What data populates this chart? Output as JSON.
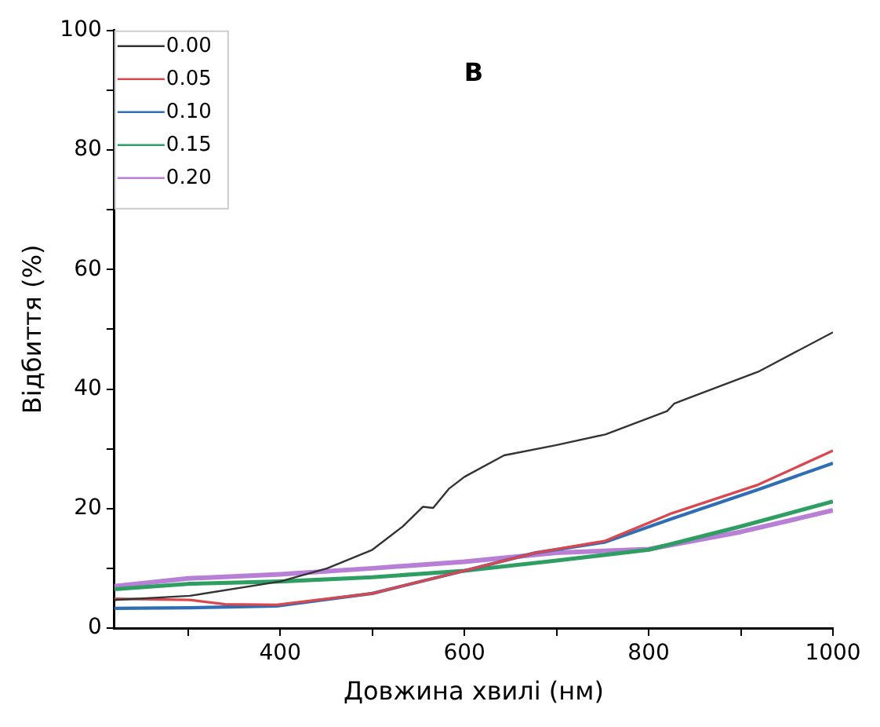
{
  "chart_data": {
    "type": "line",
    "title": "B",
    "xlabel": "Довжина хвилі (нм)",
    "ylabel": "Відбиття (%)",
    "xlim": [
      220,
      1000
    ],
    "ylim": [
      0,
      100
    ],
    "xticks": [
      {
        "value": 300,
        "label": null
      },
      400,
      {
        "value": 500,
        "label": null
      },
      600,
      {
        "value": 700,
        "label": null
      },
      800,
      {
        "value": 900,
        "label": null
      },
      1000
    ],
    "yticks": [
      0,
      {
        "value": 10,
        "label": null
      },
      20,
      {
        "value": 30,
        "label": null
      },
      40,
      {
        "value": 50,
        "label": null
      },
      60,
      {
        "value": 70,
        "label": null
      },
      80,
      {
        "value": 90,
        "label": null
      },
      100
    ],
    "grid": false,
    "legend": "top left",
    "marker": "none",
    "line_style": "solid",
    "series": [
      {
        "name": "0.00",
        "color": "#333333",
        "x": [
          220,
          302,
          400,
          451,
          500,
          533,
          555,
          566,
          583,
          600,
          643,
          699,
          753,
          820,
          828,
          919,
          1000
        ],
        "values": [
          4.7,
          5.4,
          7.8,
          10,
          13.1,
          17,
          20.3,
          20.1,
          23.3,
          25.3,
          28.9,
          30.6,
          32.4,
          36.3,
          37.6,
          42.9,
          49.5
        ]
      },
      {
        "name": "0.05",
        "color": "#d9474f",
        "x": [
          220,
          302,
          340,
          396,
          500,
          600,
          677,
          753,
          825,
          919,
          1000
        ],
        "values": [
          4.9,
          4.7,
          4,
          3.9,
          5.8,
          9.6,
          12.6,
          14.6,
          19.2,
          24,
          29.7
        ]
      },
      {
        "name": "0.10",
        "color": "#2f6db5",
        "x": [
          220,
          302,
          396,
          500,
          600,
          677,
          753,
          825,
          919,
          1000
        ],
        "values": [
          3.3,
          3.4,
          3.7,
          5.8,
          9.6,
          12.6,
          14.4,
          18.3,
          23.2,
          27.6
        ]
      },
      {
        "name": "0.15",
        "color": "#2e9e63",
        "x": [
          220,
          300,
          400,
          500,
          600,
          700,
          800,
          900,
          1000
        ],
        "values": [
          6.5,
          7.4,
          7.8,
          8.5,
          9.6,
          11.3,
          13.1,
          17,
          21.2
        ]
      },
      {
        "name": "0.20",
        "color": "#b77fd6",
        "x": [
          220,
          300,
          400,
          500,
          600,
          700,
          800,
          900,
          1000
        ],
        "values": [
          7,
          8.3,
          9,
          10,
          11.1,
          12.6,
          13.2,
          16.1,
          19.7
        ]
      }
    ]
  }
}
